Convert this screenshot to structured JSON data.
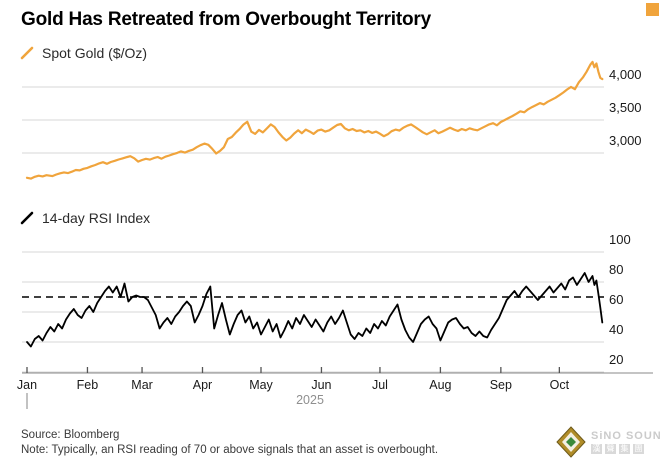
{
  "title": "Gold Has Retreated from Overbought Territory",
  "colors": {
    "gold_line": "#f0a43c",
    "rsi_line": "#000000",
    "gridline": "#d7d7d7",
    "axis_line": "#8a8a8a",
    "tick": "#555555",
    "axis_label": "#1a1a1a",
    "year_label": "#8f8f8f",
    "dashed_line": "#000000"
  },
  "panels": [
    {
      "legend": "Spot Gold ($/Oz)"
    },
    {
      "legend": "14-day RSI Index"
    }
  ],
  "footer": {
    "source": "Source: Bloomberg",
    "note": "Note: Typically, an RSI reading of 70 or above signals that an asset is overbought."
  },
  "logo": {
    "name": "SiNO SOUND",
    "cjk": [
      "漢",
      "聲",
      "集",
      "團"
    ]
  },
  "chart_data": [
    {
      "type": "line",
      "name": "Spot Gold ($/Oz)",
      "color": "#f0a43c",
      "x_unit": "day of 2025",
      "year": "2025",
      "months": [
        {
          "label": "Jan",
          "day": 0
        },
        {
          "label": "Feb",
          "day": 31
        },
        {
          "label": "Mar",
          "day": 59
        },
        {
          "label": "Apr",
          "day": 90
        },
        {
          "label": "May",
          "day": 120
        },
        {
          "label": "Jun",
          "day": 151
        },
        {
          "label": "Jul",
          "day": 181
        },
        {
          "label": "Aug",
          "day": 212
        },
        {
          "label": "Sep",
          "day": 243
        },
        {
          "label": "Oct",
          "day": 273
        }
      ],
      "yticks": [
        4000,
        3500,
        3000
      ],
      "ytick_labels": [
        "4,000",
        "3,500",
        "3,000"
      ],
      "ylim": [
        2450,
        4500
      ],
      "grid": true,
      "legend_position": "top-left",
      "points": [
        [
          0,
          2625
        ],
        [
          2,
          2612
        ],
        [
          4,
          2640
        ],
        [
          6,
          2656
        ],
        [
          8,
          2645
        ],
        [
          10,
          2663
        ],
        [
          13,
          2650
        ],
        [
          15,
          2674
        ],
        [
          17,
          2692
        ],
        [
          19,
          2706
        ],
        [
          21,
          2695
        ],
        [
          23,
          2717
        ],
        [
          25,
          2742
        ],
        [
          27,
          2736
        ],
        [
          29,
          2760
        ],
        [
          31,
          2774
        ],
        [
          33,
          2798
        ],
        [
          35,
          2818
        ],
        [
          37,
          2842
        ],
        [
          39,
          2860
        ],
        [
          41,
          2836
        ],
        [
          43,
          2864
        ],
        [
          45,
          2882
        ],
        [
          47,
          2902
        ],
        [
          49,
          2918
        ],
        [
          51,
          2936
        ],
        [
          53,
          2952
        ],
        [
          55,
          2920
        ],
        [
          57,
          2870
        ],
        [
          59,
          2894
        ],
        [
          61,
          2912
        ],
        [
          63,
          2900
        ],
        [
          65,
          2922
        ],
        [
          67,
          2940
        ],
        [
          69,
          2914
        ],
        [
          71,
          2944
        ],
        [
          73,
          2962
        ],
        [
          75,
          2984
        ],
        [
          77,
          3002
        ],
        [
          79,
          3024
        ],
        [
          81,
          3006
        ],
        [
          83,
          3032
        ],
        [
          85,
          3050
        ],
        [
          87,
          3088
        ],
        [
          89,
          3118
        ],
        [
          91,
          3142
        ],
        [
          93,
          3124
        ],
        [
          95,
          3062
        ],
        [
          97,
          2992
        ],
        [
          99,
          3032
        ],
        [
          101,
          3088
        ],
        [
          103,
          3212
        ],
        [
          105,
          3242
        ],
        [
          107,
          3308
        ],
        [
          109,
          3362
        ],
        [
          111,
          3430
        ],
        [
          113,
          3472
        ],
        [
          115,
          3322
        ],
        [
          117,
          3290
        ],
        [
          119,
          3350
        ],
        [
          121,
          3312
        ],
        [
          123,
          3372
        ],
        [
          125,
          3434
        ],
        [
          127,
          3394
        ],
        [
          129,
          3312
        ],
        [
          131,
          3244
        ],
        [
          133,
          3190
        ],
        [
          135,
          3234
        ],
        [
          137,
          3294
        ],
        [
          139,
          3344
        ],
        [
          141,
          3300
        ],
        [
          143,
          3354
        ],
        [
          145,
          3324
        ],
        [
          147,
          3290
        ],
        [
          149,
          3340
        ],
        [
          151,
          3354
        ],
        [
          153,
          3324
        ],
        [
          155,
          3344
        ],
        [
          157,
          3384
        ],
        [
          159,
          3424
        ],
        [
          161,
          3440
        ],
        [
          163,
          3374
        ],
        [
          165,
          3344
        ],
        [
          167,
          3364
        ],
        [
          169,
          3334
        ],
        [
          171,
          3344
        ],
        [
          173,
          3312
        ],
        [
          175,
          3334
        ],
        [
          177,
          3304
        ],
        [
          179,
          3324
        ],
        [
          181,
          3292
        ],
        [
          183,
          3254
        ],
        [
          185,
          3284
        ],
        [
          187,
          3330
        ],
        [
          189,
          3354
        ],
        [
          191,
          3340
        ],
        [
          193,
          3384
        ],
        [
          195,
          3414
        ],
        [
          197,
          3434
        ],
        [
          199,
          3394
        ],
        [
          201,
          3354
        ],
        [
          203,
          3314
        ],
        [
          205,
          3284
        ],
        [
          207,
          3314
        ],
        [
          209,
          3344
        ],
        [
          211,
          3298
        ],
        [
          213,
          3324
        ],
        [
          215,
          3354
        ],
        [
          217,
          3384
        ],
        [
          219,
          3354
        ],
        [
          221,
          3334
        ],
        [
          223,
          3364
        ],
        [
          225,
          3344
        ],
        [
          227,
          3374
        ],
        [
          229,
          3354
        ],
        [
          231,
          3344
        ],
        [
          233,
          3374
        ],
        [
          235,
          3404
        ],
        [
          237,
          3434
        ],
        [
          239,
          3452
        ],
        [
          241,
          3420
        ],
        [
          243,
          3470
        ],
        [
          245,
          3500
        ],
        [
          247,
          3530
        ],
        [
          249,
          3560
        ],
        [
          251,
          3596
        ],
        [
          253,
          3632
        ],
        [
          255,
          3616
        ],
        [
          257,
          3662
        ],
        [
          259,
          3696
        ],
        [
          261,
          3726
        ],
        [
          263,
          3756
        ],
        [
          265,
          3736
        ],
        [
          267,
          3776
        ],
        [
          269,
          3806
        ],
        [
          271,
          3836
        ],
        [
          273,
          3876
        ],
        [
          275,
          3916
        ],
        [
          277,
          3962
        ],
        [
          279,
          4002
        ],
        [
          281,
          3966
        ],
        [
          283,
          4072
        ],
        [
          285,
          4142
        ],
        [
          287,
          4232
        ],
        [
          289,
          4342
        ],
        [
          290,
          4380
        ],
        [
          291,
          4300
        ],
        [
          292,
          4356
        ],
        [
          293,
          4230
        ],
        [
          294,
          4140
        ],
        [
          295,
          4120
        ]
      ]
    },
    {
      "type": "line",
      "name": "14-day RSI Index",
      "color": "#000000",
      "x_unit": "day of 2025",
      "yticks": [
        100,
        80,
        60,
        40,
        20
      ],
      "ytick_labels": [
        "100",
        "80",
        "60",
        "40",
        "20"
      ],
      "ylim": [
        20,
        105
      ],
      "grid": true,
      "overbought_threshold": 70,
      "threshold_style": "dashed",
      "legend_position": "top-left",
      "points": [
        [
          0,
          40
        ],
        [
          2,
          37
        ],
        [
          4,
          42
        ],
        [
          6,
          44
        ],
        [
          8,
          41
        ],
        [
          10,
          46
        ],
        [
          12,
          50
        ],
        [
          14,
          47
        ],
        [
          16,
          52
        ],
        [
          18,
          49
        ],
        [
          20,
          55
        ],
        [
          22,
          59
        ],
        [
          24,
          62
        ],
        [
          26,
          58
        ],
        [
          28,
          56
        ],
        [
          30,
          61
        ],
        [
          32,
          64
        ],
        [
          34,
          60
        ],
        [
          36,
          66
        ],
        [
          38,
          70
        ],
        [
          40,
          74
        ],
        [
          42,
          77
        ],
        [
          44,
          73
        ],
        [
          46,
          77
        ],
        [
          48,
          70
        ],
        [
          50,
          79
        ],
        [
          52,
          67
        ],
        [
          54,
          70
        ],
        [
          56,
          71
        ],
        [
          58,
          70
        ],
        [
          60,
          70
        ],
        [
          62,
          68
        ],
        [
          64,
          63
        ],
        [
          66,
          58
        ],
        [
          68,
          49
        ],
        [
          70,
          53
        ],
        [
          72,
          56
        ],
        [
          74,
          52
        ],
        [
          76,
          57
        ],
        [
          78,
          60
        ],
        [
          80,
          64
        ],
        [
          82,
          67
        ],
        [
          84,
          64
        ],
        [
          86,
          53
        ],
        [
          88,
          58
        ],
        [
          90,
          64
        ],
        [
          92,
          72
        ],
        [
          94,
          77
        ],
        [
          96,
          49
        ],
        [
          98,
          58
        ],
        [
          100,
          66
        ],
        [
          102,
          55
        ],
        [
          104,
          45
        ],
        [
          106,
          52
        ],
        [
          108,
          58
        ],
        [
          110,
          61
        ],
        [
          112,
          53
        ],
        [
          114,
          57
        ],
        [
          116,
          49
        ],
        [
          118,
          53
        ],
        [
          120,
          45
        ],
        [
          122,
          50
        ],
        [
          124,
          55
        ],
        [
          126,
          47
        ],
        [
          128,
          52
        ],
        [
          130,
          43
        ],
        [
          132,
          48
        ],
        [
          134,
          54
        ],
        [
          136,
          49
        ],
        [
          138,
          56
        ],
        [
          140,
          52
        ],
        [
          142,
          58
        ],
        [
          144,
          54
        ],
        [
          146,
          50
        ],
        [
          148,
          55
        ],
        [
          150,
          51
        ],
        [
          152,
          47
        ],
        [
          154,
          53
        ],
        [
          156,
          57
        ],
        [
          158,
          52
        ],
        [
          160,
          56
        ],
        [
          162,
          61
        ],
        [
          164,
          53
        ],
        [
          166,
          45
        ],
        [
          168,
          42
        ],
        [
          170,
          46
        ],
        [
          172,
          44
        ],
        [
          174,
          49
        ],
        [
          176,
          46
        ],
        [
          178,
          52
        ],
        [
          180,
          49
        ],
        [
          182,
          54
        ],
        [
          184,
          51
        ],
        [
          186,
          57
        ],
        [
          188,
          61
        ],
        [
          190,
          65
        ],
        [
          192,
          55
        ],
        [
          194,
          48
        ],
        [
          196,
          43
        ],
        [
          198,
          40
        ],
        [
          200,
          46
        ],
        [
          202,
          52
        ],
        [
          204,
          55
        ],
        [
          206,
          57
        ],
        [
          208,
          52
        ],
        [
          210,
          49
        ],
        [
          212,
          41
        ],
        [
          214,
          47
        ],
        [
          216,
          53
        ],
        [
          218,
          55
        ],
        [
          220,
          56
        ],
        [
          222,
          52
        ],
        [
          224,
          49
        ],
        [
          226,
          50
        ],
        [
          228,
          46
        ],
        [
          230,
          44
        ],
        [
          232,
          47
        ],
        [
          234,
          44
        ],
        [
          236,
          43
        ],
        [
          238,
          48
        ],
        [
          240,
          52
        ],
        [
          242,
          56
        ],
        [
          244,
          62
        ],
        [
          246,
          68
        ],
        [
          248,
          71
        ],
        [
          250,
          74
        ],
        [
          252,
          70
        ],
        [
          254,
          74
        ],
        [
          256,
          77
        ],
        [
          258,
          74
        ],
        [
          260,
          71
        ],
        [
          262,
          68
        ],
        [
          264,
          71
        ],
        [
          266,
          74
        ],
        [
          268,
          77
        ],
        [
          270,
          73
        ],
        [
          272,
          76
        ],
        [
          274,
          79
        ],
        [
          276,
          75
        ],
        [
          278,
          81
        ],
        [
          280,
          83
        ],
        [
          282,
          78
        ],
        [
          284,
          82
        ],
        [
          286,
          86
        ],
        [
          288,
          80
        ],
        [
          290,
          84
        ],
        [
          291,
          78
        ],
        [
          292,
          81
        ],
        [
          293,
          72
        ],
        [
          294,
          63
        ],
        [
          295,
          53
        ]
      ]
    }
  ]
}
